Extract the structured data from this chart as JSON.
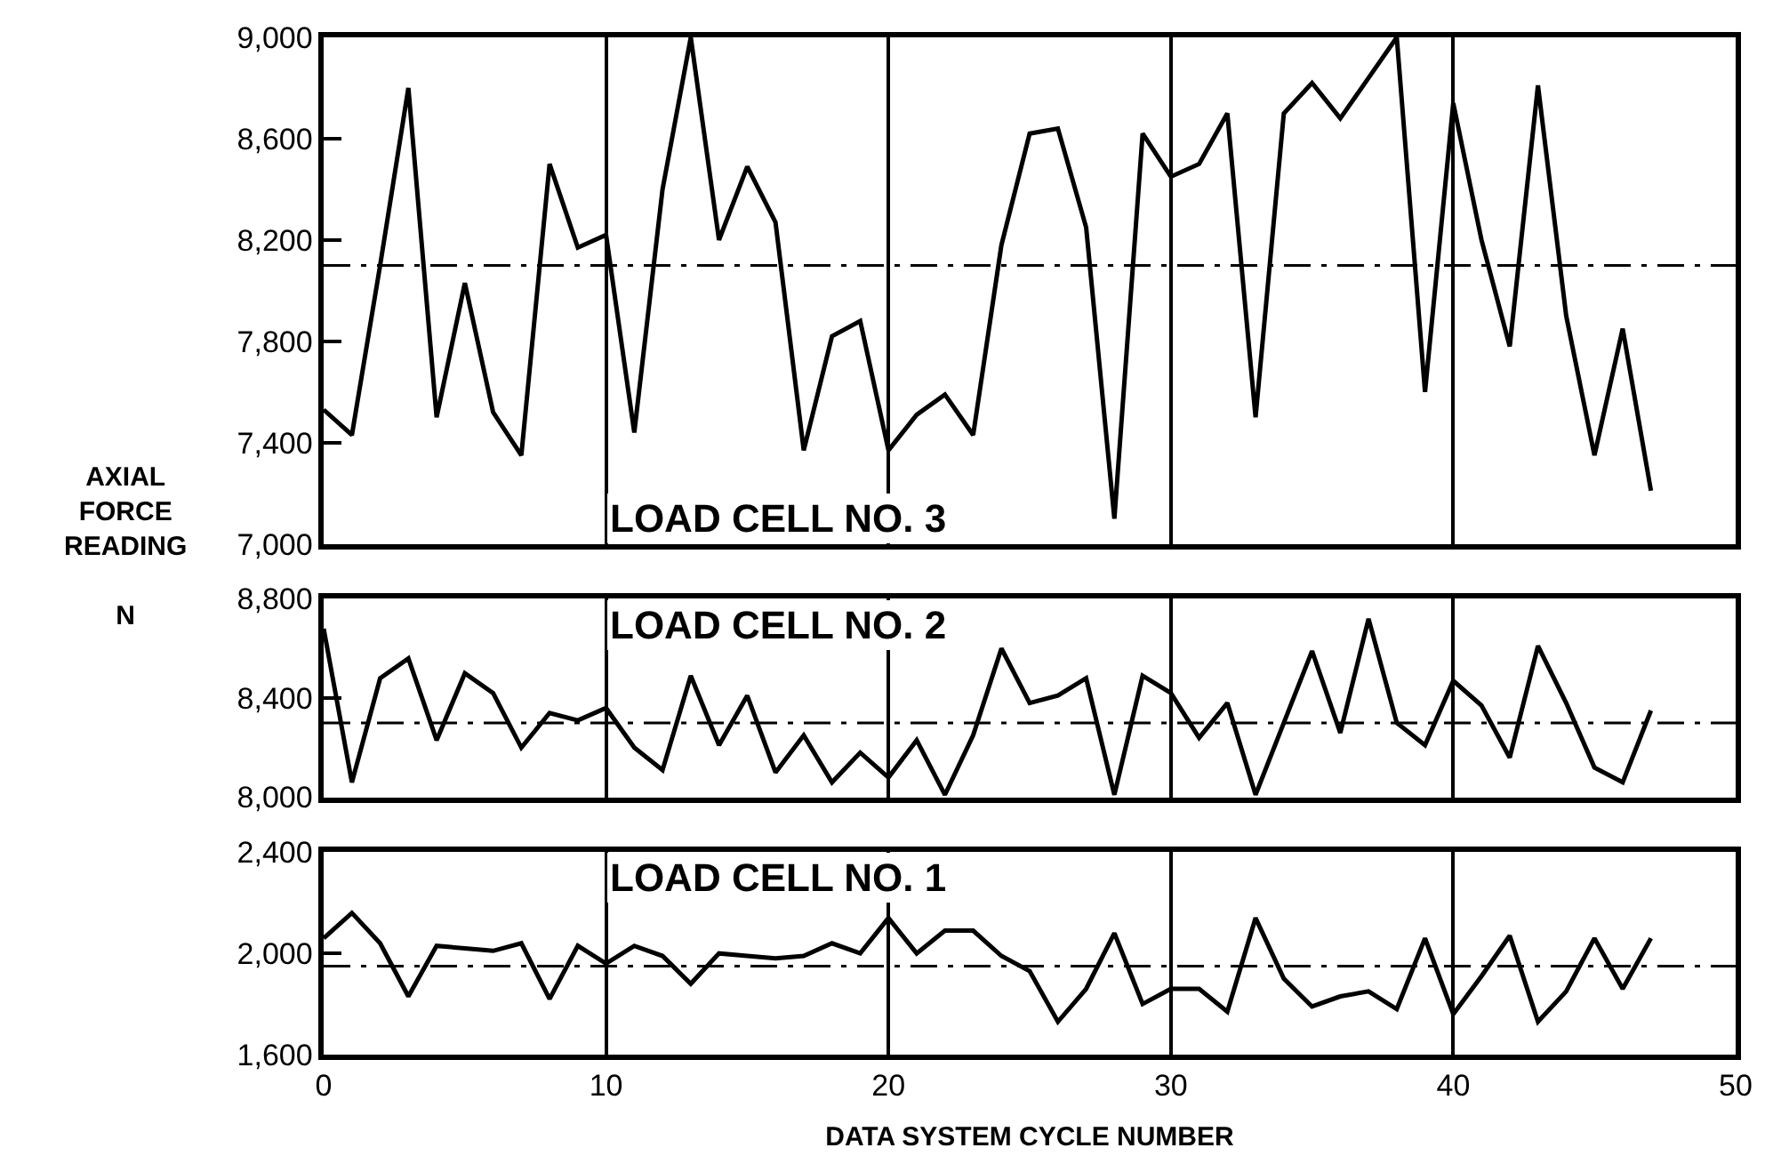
{
  "chart_data": [
    {
      "type": "line",
      "ylabel": "AXIAL\nFORCE\nREADING\n\nN",
      "xlim": [
        0,
        50
      ],
      "xticks": [
        0,
        10,
        20,
        30,
        40,
        50
      ],
      "ylim": [
        7000,
        9000
      ],
      "yticks": [
        {
          "value": 7000,
          "label": "7,000"
        },
        {
          "value": 7400,
          "label": "7,400"
        },
        {
          "value": 7800,
          "label": "7,800"
        },
        {
          "value": 8200,
          "label": "8,200"
        },
        {
          "value": 8600,
          "label": "8,600"
        },
        {
          "value": 9000,
          "label": "9,000"
        }
      ],
      "tick_labels": "y",
      "grid": "x",
      "legend": false,
      "marker": "none",
      "line_style": "solid",
      "x": [
        0,
        1,
        2,
        3,
        4,
        5,
        6,
        7,
        8,
        9,
        10,
        11,
        12,
        13,
        14,
        15,
        16,
        17,
        18,
        19,
        20,
        21,
        22,
        23,
        24,
        25,
        26,
        27,
        28,
        29,
        30,
        31,
        32,
        33,
        34,
        35,
        36,
        37,
        38,
        39,
        40,
        41,
        42,
        43,
        44,
        45,
        46,
        47
      ],
      "series": [
        {
          "name": "LOAD CELL NO. 3",
          "color": "#000000",
          "values": [
            7530,
            7430,
            8100,
            8800,
            7500,
            8030,
            7520,
            7350,
            8500,
            8170,
            8220,
            7440,
            8400,
            9000,
            8200,
            8490,
            8270,
            7370,
            7820,
            7880,
            7370,
            7510,
            7590,
            7430,
            8180,
            8620,
            8640,
            8250,
            7100,
            8620,
            8450,
            8500,
            8700,
            7500,
            8700,
            8820,
            8680,
            8840,
            9000,
            7600,
            8740,
            8200,
            7780,
            8810,
            7900,
            7350,
            7850,
            7210
          ]
        }
      ],
      "ref_lines": [
        {
          "axis": "y",
          "value": 8100,
          "color": "#000000",
          "line_style": "dashed"
        }
      ]
    },
    {
      "type": "line",
      "xlim": [
        0,
        50
      ],
      "xticks": [
        0,
        10,
        20,
        30,
        40,
        50
      ],
      "ylim": [
        8000,
        8800
      ],
      "yticks": [
        {
          "value": 8000,
          "label": "8,000"
        },
        {
          "value": 8400,
          "label": "8,400"
        },
        {
          "value": 8800,
          "label": "8,800"
        }
      ],
      "tick_labels": "y",
      "grid": "x",
      "legend": false,
      "marker": "none",
      "line_style": "solid",
      "x": [
        0,
        1,
        2,
        3,
        4,
        5,
        6,
        7,
        8,
        9,
        10,
        11,
        12,
        13,
        14,
        15,
        16,
        17,
        18,
        19,
        20,
        21,
        22,
        23,
        24,
        25,
        26,
        27,
        28,
        29,
        30,
        31,
        32,
        33,
        34,
        35,
        36,
        37,
        38,
        39,
        40,
        41,
        42,
        43,
        44,
        45,
        46,
        47
      ],
      "series": [
        {
          "name": "LOAD CELL NO. 2",
          "color": "#000000",
          "values": [
            8680,
            8060,
            8480,
            8560,
            8230,
            8500,
            8420,
            8200,
            8340,
            8310,
            8360,
            8200,
            8110,
            8490,
            8210,
            8410,
            8100,
            8250,
            8060,
            8180,
            8080,
            8230,
            8010,
            8250,
            8600,
            8380,
            8410,
            8480,
            8010,
            8490,
            8420,
            8240,
            8380,
            8010,
            8300,
            8590,
            8260,
            8720,
            8300,
            8210,
            8470,
            8370,
            8160,
            8610,
            8380,
            8120,
            8060,
            8350
          ]
        }
      ],
      "ref_lines": [
        {
          "axis": "y",
          "value": 8300,
          "color": "#000000",
          "line_style": "dashed"
        }
      ]
    },
    {
      "type": "line",
      "xlabel": "DATA SYSTEM CYCLE NUMBER",
      "xlim": [
        0,
        50
      ],
      "xticks": [
        0,
        10,
        20,
        30,
        40,
        50
      ],
      "ylim": [
        1600,
        2400
      ],
      "yticks": [
        {
          "value": 1600,
          "label": "1,600"
        },
        {
          "value": 2000,
          "label": "2,000"
        },
        {
          "value": 2400,
          "label": "2,400"
        }
      ],
      "grid": "x",
      "legend": false,
      "marker": "none",
      "line_style": "solid",
      "x": [
        0,
        1,
        2,
        3,
        4,
        5,
        6,
        7,
        8,
        9,
        10,
        11,
        12,
        13,
        14,
        15,
        16,
        17,
        18,
        19,
        20,
        21,
        22,
        23,
        24,
        25,
        26,
        27,
        28,
        29,
        30,
        31,
        32,
        33,
        34,
        35,
        36,
        37,
        38,
        39,
        40,
        41,
        42,
        43,
        44,
        45,
        46,
        47
      ],
      "series": [
        {
          "name": "LOAD CELL NO. 1",
          "color": "#000000",
          "values": [
            2060,
            2160,
            2040,
            1830,
            2030,
            2020,
            2010,
            2040,
            1820,
            2030,
            1960,
            2030,
            1990,
            1880,
            2000,
            1990,
            1980,
            1990,
            2040,
            2000,
            2140,
            2000,
            2090,
            2090,
            1990,
            1930,
            1730,
            1860,
            2080,
            1800,
            1860,
            1860,
            1770,
            2140,
            1900,
            1790,
            1830,
            1850,
            1780,
            2060,
            1760,
            1910,
            2070,
            1730,
            1850,
            2060,
            1860,
            2060
          ]
        }
      ],
      "ref_lines": [
        {
          "axis": "y",
          "value": 1950,
          "color": "#000000",
          "line_style": "dashed"
        }
      ]
    }
  ]
}
